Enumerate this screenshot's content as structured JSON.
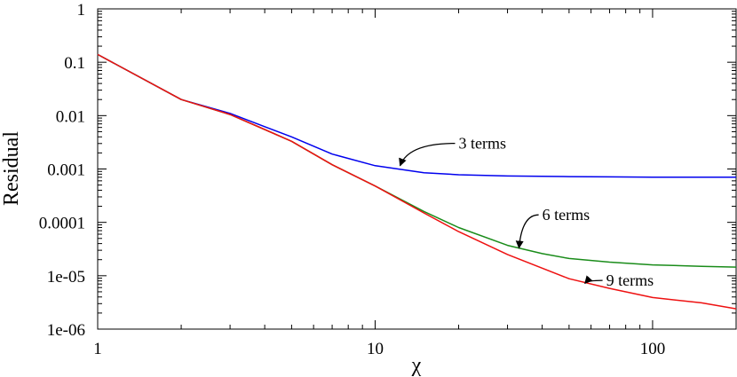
{
  "chart_data": {
    "type": "line",
    "xlabel": "χ",
    "ylabel": "Residual",
    "xscale": "log",
    "yscale": "log",
    "xlim": [
      1,
      200
    ],
    "ylim": [
      1e-06,
      1
    ],
    "x_ticks": [
      {
        "value": 1,
        "label": "1"
      },
      {
        "value": 10,
        "label": "10"
      },
      {
        "value": 100,
        "label": "100"
      }
    ],
    "y_ticks": [
      {
        "value": 1,
        "label": "1"
      },
      {
        "value": 0.1,
        "label": "0.1"
      },
      {
        "value": 0.01,
        "label": "0.01"
      },
      {
        "value": 0.001,
        "label": "0.001"
      },
      {
        "value": 0.0001,
        "label": "0.0001"
      },
      {
        "value": 1e-05,
        "label": "1e-05"
      },
      {
        "value": 1e-06,
        "label": "1e-06"
      }
    ],
    "grid": false,
    "series": [
      {
        "name": "3 terms",
        "color": "#0000ee",
        "x": [
          1,
          2,
          3,
          4,
          5,
          7,
          10,
          15,
          20,
          30,
          50,
          70,
          100,
          150,
          200
        ],
        "y": [
          0.14,
          0.02,
          0.011,
          0.0062,
          0.004,
          0.0019,
          0.00115,
          0.00085,
          0.00078,
          0.00074,
          0.00072,
          0.00071,
          0.0007,
          0.0007,
          0.0007
        ]
      },
      {
        "name": "6 terms",
        "color": "#1a8c1a",
        "x": [
          1,
          2,
          3,
          4,
          5,
          7,
          10,
          15,
          20,
          30,
          40,
          50,
          70,
          100,
          150,
          200
        ],
        "y": [
          0.14,
          0.02,
          0.0105,
          0.0055,
          0.0033,
          0.0012,
          0.00048,
          0.00016,
          8e-05,
          3.7e-05,
          2.6e-05,
          2.1e-05,
          1.8e-05,
          1.6e-05,
          1.5e-05,
          1.45e-05
        ]
      },
      {
        "name": "9 terms",
        "color": "#ee1111",
        "x": [
          1,
          2,
          3,
          4,
          5,
          7,
          10,
          15,
          20,
          30,
          50,
          70,
          100,
          150,
          200
        ],
        "y": [
          0.14,
          0.02,
          0.0105,
          0.0055,
          0.0033,
          0.0012,
          0.00048,
          0.00015,
          6.7e-05,
          2.5e-05,
          8.8e-06,
          5.8e-06,
          3.9e-06,
          3.1e-06,
          2.4e-06
        ]
      }
    ],
    "annotations": [
      {
        "series": "3 terms",
        "text": "3 terms",
        "text_x": 20,
        "text_y": 0.0024,
        "tip_x": 12.3,
        "tip_y": 0.00115
      },
      {
        "series": "6 terms",
        "text": "6 terms",
        "text_x": 40,
        "text_y": 0.00011,
        "tip_x": 33,
        "tip_y": 3.3e-05
      },
      {
        "series": "9 terms",
        "text": "9 terms",
        "text_x": 68,
        "text_y": 6.5e-06,
        "tip_x": 57,
        "tip_y": 7.2e-06
      }
    ]
  }
}
